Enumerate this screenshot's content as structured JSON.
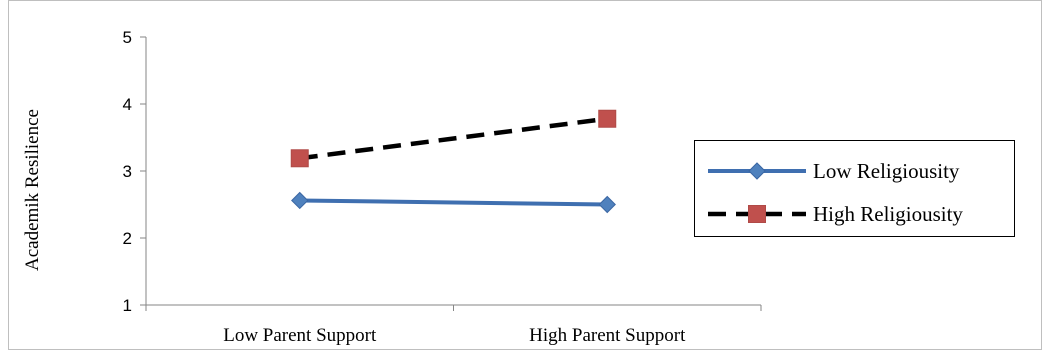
{
  "chart_data": {
    "type": "line",
    "categories": [
      "Low Parent Support",
      "High Parent Support"
    ],
    "series": [
      {
        "name": "Low Religiousity",
        "values": [
          2.56,
          2.5
        ],
        "color": "#3f6fb0",
        "marker": "diamond",
        "dash": "solid"
      },
      {
        "name": "High Religiousity",
        "values": [
          3.19,
          3.78
        ],
        "color": "#000000",
        "marker_color": "#c0504d",
        "marker": "square",
        "dash": "dashed"
      }
    ],
    "ylabel": "Academik  Resilience",
    "xlabel": "",
    "ylim": [
      1,
      5
    ],
    "yticks": [
      1,
      2,
      3,
      4,
      5
    ],
    "grid": false,
    "legend_position": "right"
  }
}
